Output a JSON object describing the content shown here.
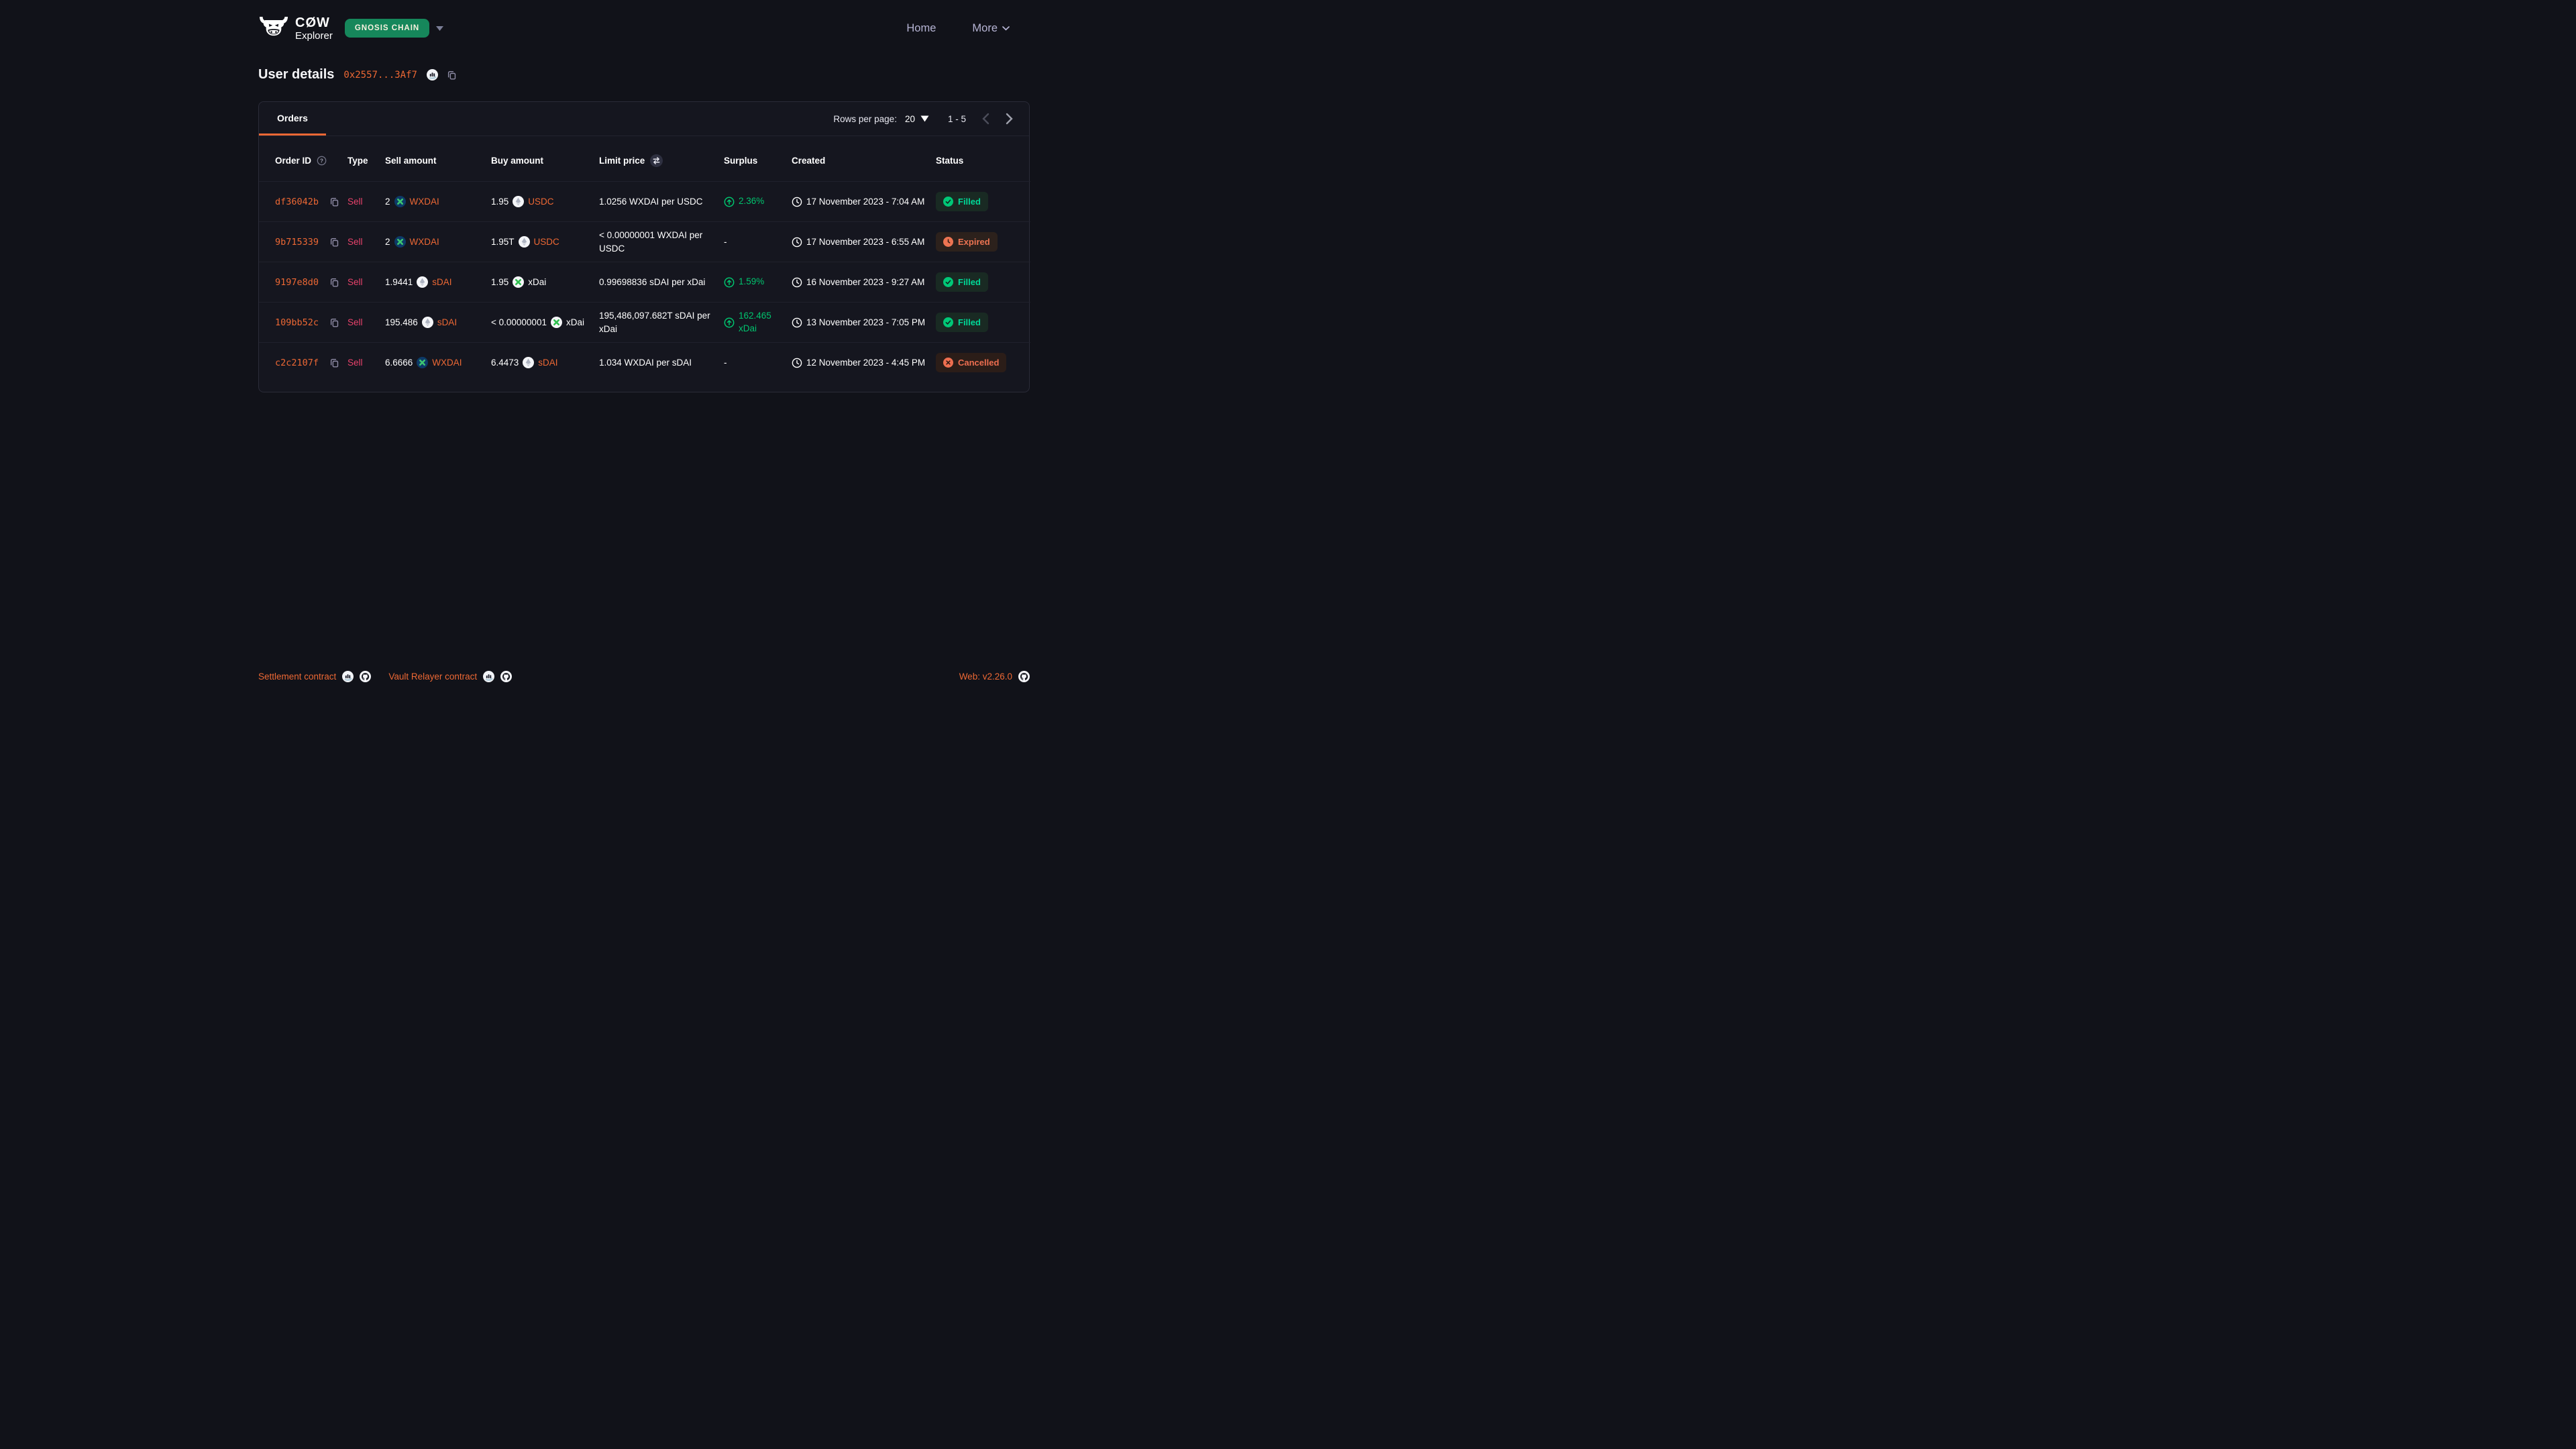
{
  "header": {
    "brand": {
      "name": "CØW",
      "sub": "Explorer"
    },
    "network_badge": "GNOSIS CHAIN",
    "nav": [
      {
        "label": "Home"
      },
      {
        "label": "More"
      }
    ]
  },
  "page": {
    "title": "User details",
    "address_short": "0x2557...3Af7"
  },
  "table": {
    "tab_label": "Orders",
    "pagination": {
      "label": "Rows per page:",
      "value": "20",
      "range": "1 - 5"
    },
    "columns": [
      "Order ID",
      "Type",
      "Sell amount",
      "Buy amount",
      "Limit price",
      "Surplus",
      "Created",
      "Status"
    ],
    "rows": [
      {
        "order_id": "df36042b",
        "type": "Sell",
        "sell": {
          "amount": "2",
          "token": "WXDAI",
          "icon": "gnosis-dark",
          "link": true
        },
        "buy": {
          "amount": "1.95",
          "token": "USDC",
          "icon": "eth-light",
          "link": true
        },
        "limit_price": "1.0256 WXDAI per USDC",
        "surplus": {
          "value": "2.36%",
          "positive": true
        },
        "created": "17 November 2023 - 7:04 AM",
        "status": {
          "label": "Filled",
          "kind": "filled"
        }
      },
      {
        "order_id": "9b715339",
        "type": "Sell",
        "sell": {
          "amount": "2",
          "token": "WXDAI",
          "icon": "gnosis-dark",
          "link": true
        },
        "buy": {
          "amount": "1.95T",
          "token": "USDC",
          "icon": "eth-light",
          "link": true
        },
        "limit_price": "< 0.00000001 WXDAI per USDC",
        "surplus": {
          "value": "-",
          "positive": false
        },
        "created": "17 November 2023 - 6:55 AM",
        "status": {
          "label": "Expired",
          "kind": "expired"
        }
      },
      {
        "order_id": "9197e8d0",
        "type": "Sell",
        "sell": {
          "amount": "1.9441",
          "token": "sDAI",
          "icon": "eth-light",
          "link": true
        },
        "buy": {
          "amount": "1.95",
          "token": "xDai",
          "icon": "gnosis-light",
          "link": false
        },
        "limit_price": "0.99698836 sDAI per xDai",
        "surplus": {
          "value": "1.59%",
          "positive": true
        },
        "created": "16 November 2023 - 9:27 AM",
        "status": {
          "label": "Filled",
          "kind": "filled"
        }
      },
      {
        "order_id": "109bb52c",
        "type": "Sell",
        "sell": {
          "amount": "195.486",
          "token": "sDAI",
          "icon": "eth-light",
          "link": true
        },
        "buy": {
          "amount": "< 0.00000001",
          "token": "xDai",
          "icon": "gnosis-light",
          "link": false
        },
        "limit_price": "195,486,097.682T sDAI per xDai",
        "surplus": {
          "value": "162.465 xDai",
          "positive": true
        },
        "created": "13 November 2023 - 7:05 PM",
        "status": {
          "label": "Filled",
          "kind": "filled"
        }
      },
      {
        "order_id": "c2c2107f",
        "type": "Sell",
        "sell": {
          "amount": "6.6666",
          "token": "WXDAI",
          "icon": "gnosis-dark",
          "link": true
        },
        "buy": {
          "amount": "6.4473",
          "token": "sDAI",
          "icon": "eth-light",
          "link": true
        },
        "limit_price": "1.034 WXDAI per sDAI",
        "surplus": {
          "value": "-",
          "positive": false
        },
        "created": "12 November 2023 - 4:45 PM",
        "status": {
          "label": "Cancelled",
          "kind": "cancelled"
        }
      }
    ]
  },
  "footer": {
    "links": [
      {
        "label": "Settlement contract"
      },
      {
        "label": "Vault Relayer contract"
      }
    ],
    "version": "Web: v2.26.0"
  },
  "colors": {
    "accent_orange": "#ED6834",
    "sell_pink": "#E8426B",
    "surplus_green": "#00C46E",
    "filled_green": "#00D897",
    "expired_orange": "#ED7452",
    "cancelled_orange": "#ED6E50",
    "network_green": "#16875B",
    "page_bg": "#111219",
    "card_bg": "#15161F"
  }
}
